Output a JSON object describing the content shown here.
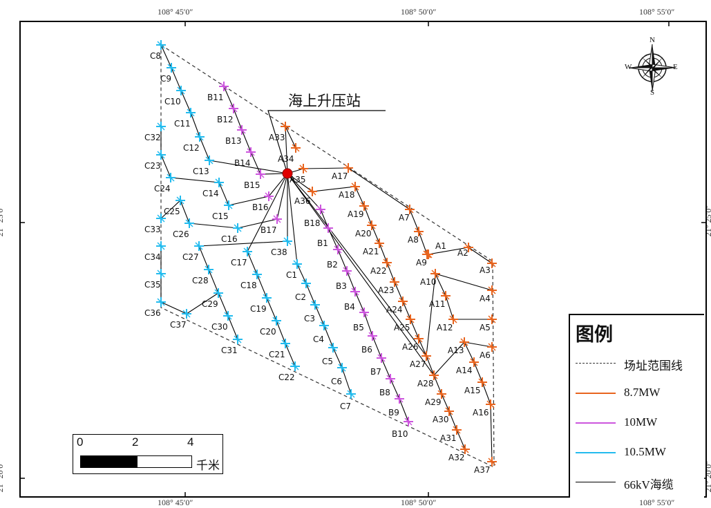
{
  "coordinates": {
    "top": [
      "108° 45′0″",
      "108° 50′0″",
      "108° 55′0″"
    ],
    "bottom": [
      "108° 45′0″",
      "108° 50′0″",
      "108° 55′0″"
    ],
    "left": [
      "21° 25′0″",
      "21° 20′0″"
    ],
    "right": [
      "21° 25′0″",
      "21° 20′0″"
    ]
  },
  "station_label": "海上升压站",
  "compass": {
    "n": "N",
    "s": "S",
    "e": "E",
    "w": "W"
  },
  "legend": {
    "title": "图例",
    "items": [
      {
        "label": "场址范围线",
        "style": "dashed",
        "color": "#333333"
      },
      {
        "label": "8.7MW",
        "style": "solid",
        "color": "#e8641e"
      },
      {
        "label": "10MW",
        "style": "solid",
        "color": "#cc55dd"
      },
      {
        "label": "10.5MW",
        "style": "solid",
        "color": "#22bbee"
      },
      {
        "label": "66kV海缆",
        "style": "solid",
        "color": "#000000"
      }
    ]
  },
  "scalebar": {
    "ticks": [
      "0",
      "2",
      "4"
    ],
    "unit": "千米"
  },
  "turbine_colors": {
    "A": "#e8641e",
    "B": "#cc55dd",
    "C": "#22bbee"
  },
  "turbines": {
    "A": [
      "A1",
      "A2",
      "A3",
      "A4",
      "A5",
      "A6",
      "A7",
      "A8",
      "A9",
      "A10",
      "A11",
      "A12",
      "A13",
      "A14",
      "A15",
      "A16",
      "A17",
      "A18",
      "A19",
      "A20",
      "A21",
      "A22",
      "A23",
      "A24",
      "A25",
      "A26",
      "A27",
      "A28",
      "A29",
      "A30",
      "A31",
      "A32",
      "A33",
      "A34",
      "A35",
      "A36",
      "A37"
    ],
    "B": [
      "B1",
      "B2",
      "B3",
      "B4",
      "B5",
      "B6",
      "B7",
      "B8",
      "B9",
      "B10",
      "B11",
      "B12",
      "B13",
      "B14",
      "B15",
      "B16",
      "B17",
      "B18"
    ],
    "C": [
      "C1",
      "C2",
      "C3",
      "C4",
      "C5",
      "C6",
      "C7",
      "C8",
      "C9",
      "C10",
      "C11",
      "C12",
      "C13",
      "C14",
      "C15",
      "C16",
      "C17",
      "C18",
      "C19",
      "C20",
      "C21",
      "C22",
      "C23",
      "C24",
      "C25",
      "C26",
      "C27",
      "C28",
      "C29",
      "C30",
      "C31",
      "C32",
      "C33",
      "C34",
      "C35",
      "C36",
      "C37",
      "C38"
    ]
  }
}
